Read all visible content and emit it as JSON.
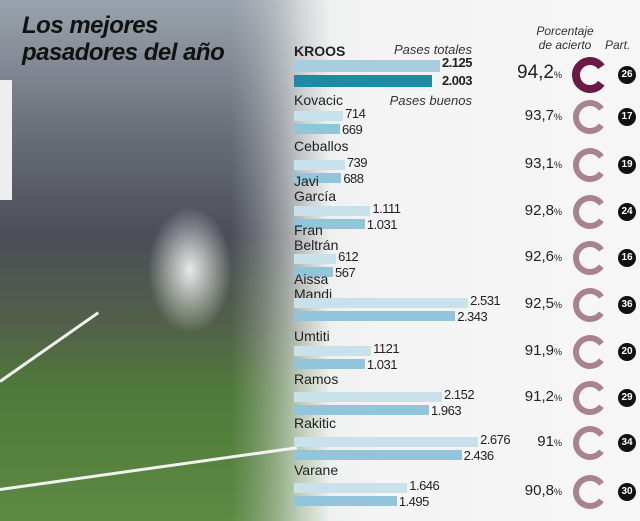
{
  "title_line1": "Los mejores",
  "title_line2": "pasadores del año",
  "legend": {
    "total": "Pases totales",
    "good": "Pases buenos",
    "pct_header_1": "Porcentaje",
    "pct_header_2": "de acierto",
    "matches_header": "Part."
  },
  "colors": {
    "total_highlight": "#a9cde0",
    "good_highlight": "#1d8aa6",
    "total": "#c9e1eb",
    "good": "#92c4da",
    "ring_highlight": "#6b1a45",
    "ring": "#a8828f"
  },
  "chart_data": {
    "type": "bar",
    "orientation": "horizontal",
    "categories": [
      "KROOS",
      "Kovacic",
      "Ceballos",
      "Javi García",
      "Fran Beltrán",
      "Aissa Mandi",
      "Umtiti",
      "Ramos",
      "Rakitic",
      "Varane"
    ],
    "series": [
      {
        "name": "Pases totales",
        "values": [
          2125,
          714,
          739,
          1111,
          612,
          2531,
          1121,
          2152,
          2676,
          1646
        ],
        "labels": [
          "2.125",
          "714",
          "739",
          "1.111",
          "612",
          "2.531",
          "1121",
          "2.152",
          "2.676",
          "1.646"
        ]
      },
      {
        "name": "Pases buenos",
        "values": [
          2003,
          669,
          688,
          1031,
          567,
          2343,
          1031,
          1963,
          2436,
          1495
        ],
        "labels": [
          "2.003",
          "669",
          "688",
          "1.031",
          "567",
          "2.343",
          "1.031",
          "1.963",
          "2.436",
          "1.495"
        ]
      }
    ],
    "accuracy_pct": [
      94.2,
      93.7,
      93.1,
      92.8,
      92.6,
      92.5,
      91.9,
      91.2,
      91,
      90.8
    ],
    "accuracy_labels": [
      "94,2",
      "93,7",
      "93,1",
      "92,8",
      "92,6",
      "92,5",
      "91,9",
      "91,2",
      "91",
      "90,8"
    ],
    "matches": [
      "26",
      "17",
      "19",
      "24",
      "16",
      "36",
      "20",
      "29",
      "34",
      "30"
    ]
  }
}
